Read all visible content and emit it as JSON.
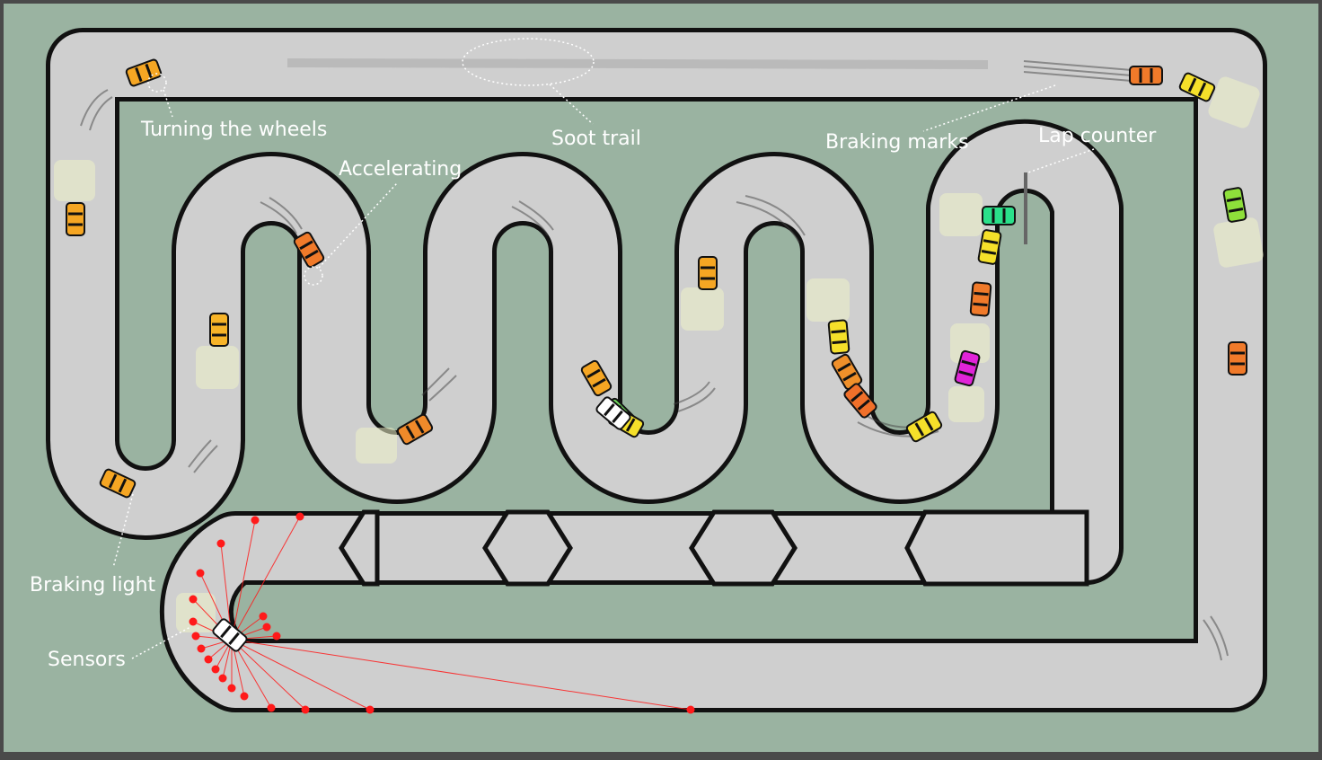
{
  "colors": {
    "ground": "#9ab3a1",
    "frame": "#4a4a4a",
    "track_edge": "#111111",
    "track_surface": "#cfcfcf",
    "label_text": "#ffffff",
    "sensor": "#ff1a1a",
    "lap_counter": "#666666"
  },
  "labels": {
    "turning_wheels": "Turning the wheels",
    "soot_trail": "Soot trail",
    "accelerating": "Accelerating",
    "braking_marks": "Braking marks",
    "lap_counter": "Lap counter",
    "braking_light": "Braking light",
    "sensors": "Sensors"
  },
  "cars": [
    {
      "id": "car-orange-1",
      "color": "#f5a623"
    },
    {
      "id": "car-orange-2",
      "color": "#f5a623"
    },
    {
      "id": "car-orange-3",
      "color": "#f5a623"
    },
    {
      "id": "car-orange-4",
      "color": "#f7b428"
    },
    {
      "id": "car-orange-5",
      "color": "#f07a2a"
    },
    {
      "id": "car-orange-6",
      "color": "#f08a2a"
    },
    {
      "id": "car-orange-7",
      "color": "#f5a623"
    },
    {
      "id": "car-orange-8",
      "color": "#f5a623"
    },
    {
      "id": "car-orange-9",
      "color": "#f07a2a"
    },
    {
      "id": "car-yellow-1",
      "color": "#f5e02a"
    },
    {
      "id": "car-green-1",
      "color": "#8ee03a"
    },
    {
      "id": "car-green-2",
      "color": "#6ed85a"
    },
    {
      "id": "car-yellow-2",
      "color": "#f5e02a"
    },
    {
      "id": "car-yellow-3",
      "color": "#f5e02a"
    },
    {
      "id": "car-orange-10",
      "color": "#f0902a"
    },
    {
      "id": "car-orange-11",
      "color": "#f0702a"
    },
    {
      "id": "car-yellow-4",
      "color": "#f5e02a"
    },
    {
      "id": "car-magenta-1",
      "color": "#e024d8"
    },
    {
      "id": "car-orange-12",
      "color": "#f07a2a"
    },
    {
      "id": "car-teal-1",
      "color": "#2ae08a"
    },
    {
      "id": "car-yellow-5",
      "color": "#f5e02a"
    },
    {
      "id": "car-orange-13",
      "color": "#f07a2a"
    },
    {
      "id": "car-white-1",
      "color": "#ffffff"
    },
    {
      "id": "car-white-player",
      "color": "#ffffff"
    }
  ]
}
